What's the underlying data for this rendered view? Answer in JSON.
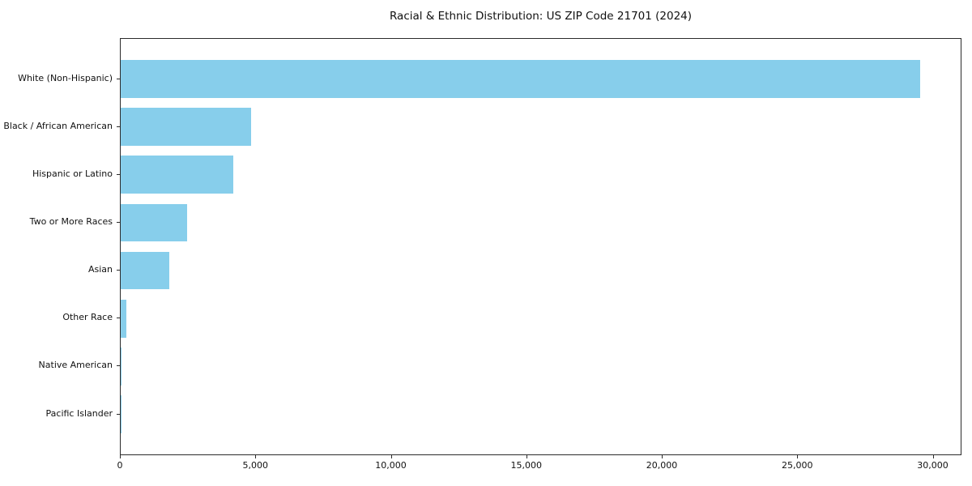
{
  "chart_data": {
    "type": "bar",
    "orientation": "horizontal",
    "title": "Racial & Ethnic Distribution: US ZIP Code 21701 (2024)",
    "categories": [
      "White (Non-Hispanic)",
      "Black / African American",
      "Hispanic or Latino",
      "Two or More Races",
      "Asian",
      "Other Race",
      "Native American",
      "Pacific Islander"
    ],
    "values": [
      29500,
      4800,
      4150,
      2450,
      1800,
      200,
      30,
      10
    ],
    "xlabel": "",
    "ylabel": "",
    "xlim": [
      0,
      31000
    ],
    "xticks": [
      0,
      5000,
      10000,
      15000,
      20000,
      25000,
      30000
    ],
    "xtick_labels": [
      "0",
      "5,000",
      "10,000",
      "15,000",
      "20,000",
      "25,000",
      "30,000"
    ],
    "bar_color": "#87CEEB",
    "axis_color": "#2b2b2b",
    "grid": false,
    "legend": null
  }
}
